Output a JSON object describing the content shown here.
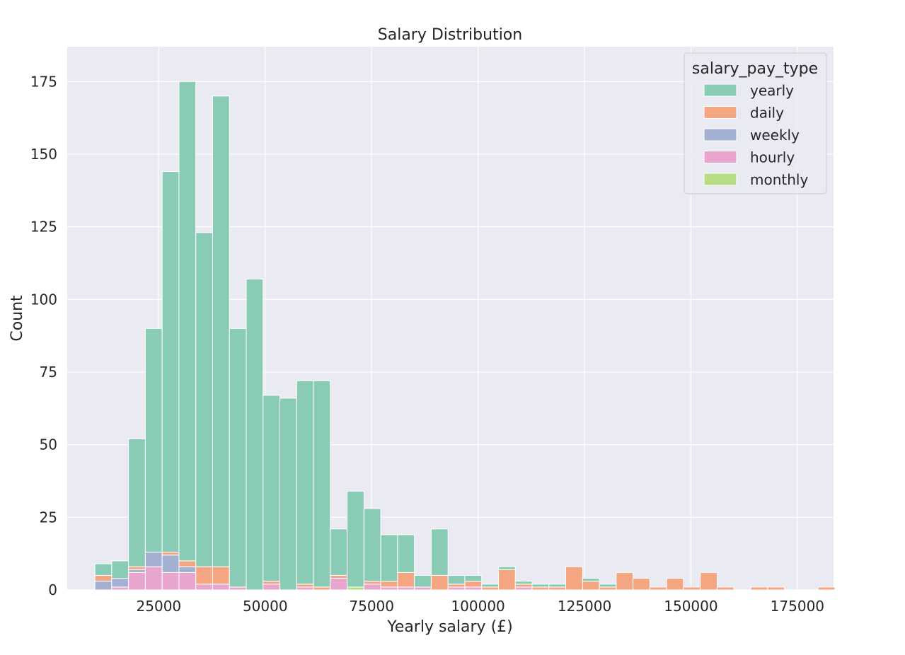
{
  "chart_data": {
    "type": "bar",
    "stacked": true,
    "title": "Salary Distribution",
    "xlabel": "Yearly salary (£)",
    "ylabel": "Count",
    "xlim": [
      3500,
      183500
    ],
    "ylim": [
      0,
      187
    ],
    "xticks": [
      25000,
      50000,
      75000,
      100000,
      125000,
      150000,
      175000
    ],
    "xtick_labels": [
      "25000",
      "50000",
      "75000",
      "100000",
      "125000",
      "150000",
      "175000"
    ],
    "yticks": [
      0,
      25,
      50,
      75,
      100,
      125,
      150,
      175
    ],
    "ytick_labels": [
      "0",
      "25",
      "50",
      "75",
      "100",
      "125",
      "150",
      "175"
    ],
    "grid": true,
    "legend_title": "salary_pay_type",
    "legend_position": "top-right",
    "bins_start": 10000,
    "bin_width": 3950,
    "series": [
      {
        "name": "yearly",
        "color": "#8acbb6",
        "values": [
          4,
          6,
          44,
          77,
          131,
          165,
          115,
          162,
          89,
          107,
          64,
          66,
          70,
          71,
          16,
          33,
          25,
          16,
          13,
          4,
          16,
          3,
          2,
          1,
          1,
          1,
          1,
          1,
          0,
          1,
          1,
          0,
          0,
          0,
          0,
          0,
          0,
          0,
          0,
          0,
          0,
          0,
          0,
          0
        ]
      },
      {
        "name": "daily",
        "color": "#f4a582",
        "values": [
          2,
          0,
          1,
          0,
          1,
          2,
          6,
          6,
          0,
          0,
          1,
          0,
          1,
          1,
          1,
          0,
          1,
          2,
          5,
          0,
          5,
          1,
          2,
          1,
          7,
          1,
          1,
          1,
          8,
          3,
          1,
          6,
          4,
          1,
          4,
          1,
          6,
          1,
          0,
          1,
          1,
          0,
          0,
          1
        ]
      },
      {
        "name": "weekly",
        "color": "#a3b0d2",
        "values": [
          3,
          3,
          1,
          5,
          6,
          2,
          0,
          0,
          0,
          0,
          0,
          0,
          0,
          0,
          0,
          0,
          0,
          0,
          0,
          0,
          0,
          0,
          0,
          0,
          0,
          0,
          0,
          0,
          0,
          0,
          0,
          0,
          0,
          0,
          0,
          0,
          0,
          0,
          0,
          0,
          0,
          0,
          0,
          0
        ]
      },
      {
        "name": "hourly",
        "color": "#e8a6cf",
        "values": [
          0,
          1,
          6,
          8,
          6,
          6,
          2,
          2,
          1,
          0,
          2,
          0,
          1,
          0,
          4,
          0,
          2,
          1,
          1,
          1,
          0,
          1,
          1,
          0,
          0,
          1,
          0,
          0,
          0,
          0,
          0,
          0,
          0,
          0,
          0,
          0,
          0,
          0,
          0,
          0,
          0,
          0,
          0,
          0
        ]
      },
      {
        "name": "monthly",
        "color": "#b7dc84",
        "values": [
          0,
          0,
          0,
          0,
          0,
          0,
          0,
          0,
          0,
          0,
          0,
          0,
          0,
          0,
          0,
          1,
          0,
          0,
          0,
          0,
          0,
          0,
          0,
          0,
          0,
          0,
          0,
          0,
          0,
          0,
          0,
          0,
          0,
          0,
          0,
          0,
          0,
          0,
          0,
          0,
          0,
          0,
          0,
          0
        ]
      }
    ]
  },
  "colors": {
    "plot_background": "#eaeaf2",
    "grid": "#ffffff",
    "bar_edge": "#ffffff"
  }
}
